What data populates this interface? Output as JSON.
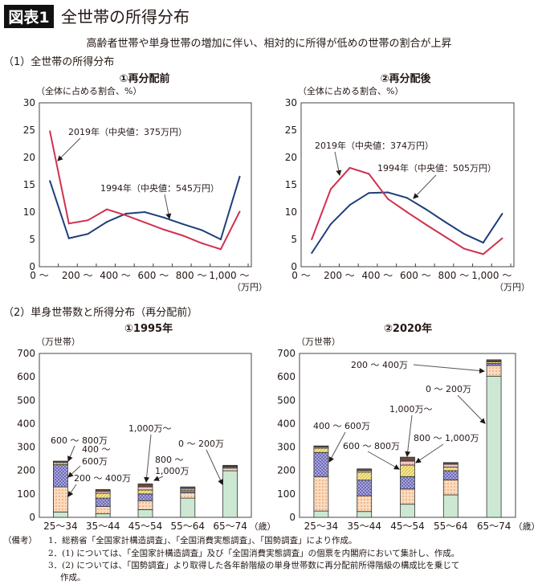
{
  "header": {
    "badge": "図表1",
    "title": "全世帯の所得分布",
    "subtitle": "高齢者世帯や単身世帯の増加に伴い、相対的に所得が低めの世帯の割合が上昇",
    "section1": "（1）全世帯の所得分布",
    "section2": "（2）単身世帯数と所得分布（再分配前）"
  },
  "colors": {
    "y2019": "#d0314f",
    "y1994": "#1f3f7a",
    "inc_0_200": "#cce8d2",
    "inc_200_400": "#fbdcc0",
    "inc_400_600": "#aaa7d8",
    "inc_600_800": "#f6ec96",
    "inc_800_1000": "#f5c8ca",
    "inc_1000": "#6b4b3c"
  },
  "chart_data": [
    {
      "type": "line",
      "title": "①再分配前",
      "ylabel": "（全体に占める割合、%）",
      "xunit": "（万円）",
      "ylim": [
        0,
        30
      ],
      "yticks": [
        "0",
        "5",
        "10",
        "15",
        "20",
        "25",
        "30"
      ],
      "xticks": [
        "0 ～",
        "200 ～",
        "400 ～",
        "600 ～",
        "800 ～",
        "1,000 ～"
      ],
      "categories": [
        "0-100",
        "100-200",
        "200-300",
        "300-400",
        "400-500",
        "500-600",
        "600-700",
        "700-800",
        "800-900",
        "900-1,000",
        "1,000-"
      ],
      "series": [
        {
          "name": "2019年（中央値：375万円）",
          "values": [
            24.8,
            7.9,
            8.5,
            10.5,
            9.4,
            8.1,
            6.8,
            5.7,
            4.3,
            3.2,
            10.1
          ]
        },
        {
          "name": "1994年（中央値：545万円）",
          "values": [
            15.7,
            5.2,
            6.0,
            8.2,
            9.7,
            10.0,
            9.0,
            7.8,
            6.7,
            5.0,
            16.5
          ]
        }
      ]
    },
    {
      "type": "line",
      "title": "②再分配後",
      "ylabel": "（全体に占める割合、%）",
      "xunit": "（万円）",
      "ylim": [
        0,
        30
      ],
      "yticks": [
        "0",
        "5",
        "10",
        "15",
        "20",
        "25",
        "30"
      ],
      "xticks": [
        "0 ～",
        "200 ～",
        "400 ～",
        "600 ～",
        "800 ～",
        "1,000 ～"
      ],
      "categories": [
        "0-100",
        "100-200",
        "200-300",
        "300-400",
        "400-500",
        "500-600",
        "600-700",
        "700-800",
        "800-900",
        "900-1,000",
        "1,000-"
      ],
      "series": [
        {
          "name": "2019年（中央値：374万円）",
          "values": [
            5.0,
            14.2,
            18.1,
            17.0,
            12.4,
            10.0,
            7.7,
            5.5,
            3.3,
            2.3,
            5.2
          ]
        },
        {
          "name": "1994年（中央値：505万円）",
          "values": [
            2.5,
            7.8,
            11.3,
            13.5,
            13.6,
            12.6,
            10.5,
            8.2,
            6.0,
            4.4,
            9.7
          ]
        }
      ]
    },
    {
      "type": "bar",
      "stacked": true,
      "title": "①1995年",
      "ylabel": "（万世帯）",
      "xunit": "（歳）",
      "ylim": [
        0,
        700
      ],
      "yticks": [
        "0",
        "100",
        "200",
        "300",
        "400",
        "500",
        "600",
        "700"
      ],
      "categories": [
        "25～34",
        "35～44",
        "45～54",
        "55～64",
        "65～74"
      ],
      "series": [
        {
          "name": "0 ～ 200万",
          "values": [
            23,
            15,
            33,
            82,
            199
          ]
        },
        {
          "name": "200 ～ 400万",
          "values": [
            107,
            31,
            38,
            23,
            11
          ]
        },
        {
          "name": "400 ～ 600万",
          "values": [
            95,
            36,
            29,
            9,
            4
          ]
        },
        {
          "name": "600 ～ 800万",
          "values": [
            8,
            21,
            17,
            7,
            4
          ]
        },
        {
          "name": "800 ～ 1,000万",
          "values": [
            4,
            8,
            13,
            5,
            2
          ]
        },
        {
          "name": "1,000万～",
          "values": [
            3,
            8,
            13,
            4,
            2
          ]
        }
      ],
      "annotations": [
        "600 ～ 800万",
        "400 ～",
        "600万",
        "200 ～ 400万",
        "1,000万～",
        "800 ～",
        "1,000万",
        "0 ～ 200万"
      ]
    },
    {
      "type": "bar",
      "stacked": true,
      "title": "②2020年",
      "ylabel": "（万世帯）",
      "xunit": "（歳）",
      "ylim": [
        0,
        700
      ],
      "yticks": [
        "0",
        "100",
        "200",
        "300",
        "400",
        "500",
        "600",
        "700"
      ],
      "categories": [
        "25～34",
        "35～44",
        "45～54",
        "55～64",
        "65～74"
      ],
      "series": [
        {
          "name": "0 ～ 200万",
          "values": [
            27,
            25,
            56,
            96,
            603
          ]
        },
        {
          "name": "200 ～ 400万",
          "values": [
            147,
            67,
            65,
            64,
            46
          ]
        },
        {
          "name": "400 ～ 600万",
          "values": [
            103,
            67,
            53,
            39,
            8
          ]
        },
        {
          "name": "600 ～ 800万",
          "values": [
            18,
            34,
            49,
            16,
            7
          ]
        },
        {
          "name": "800 ～ 1,000万",
          "values": [
            5,
            7,
            17,
            12,
            4
          ]
        },
        {
          "name": "1,000万～",
          "values": [
            5,
            7,
            17,
            7,
            5
          ]
        }
      ],
      "annotations": [
        "200 ～ 400万",
        "0 ～ 200万",
        "1,000万～",
        "400 ～ 600万",
        "800 ～ 1,000万",
        "600 ～ 800万"
      ]
    }
  ],
  "notes": {
    "label": "（備考）",
    "items": [
      "1．総務省「全国家計構造調査」、「全国消費実態調査」、「国勢調査」により作成。",
      "2．(1) については、「全国家計構造調査」及び「全国消費実態調査」の個票を内閣府において集計し、作成。",
      "3．(2) については、「国勢調査」より取得した各年齢階級の単身世帯数に再分配前所得階級の構成比を乗じて",
      "作成。"
    ]
  }
}
